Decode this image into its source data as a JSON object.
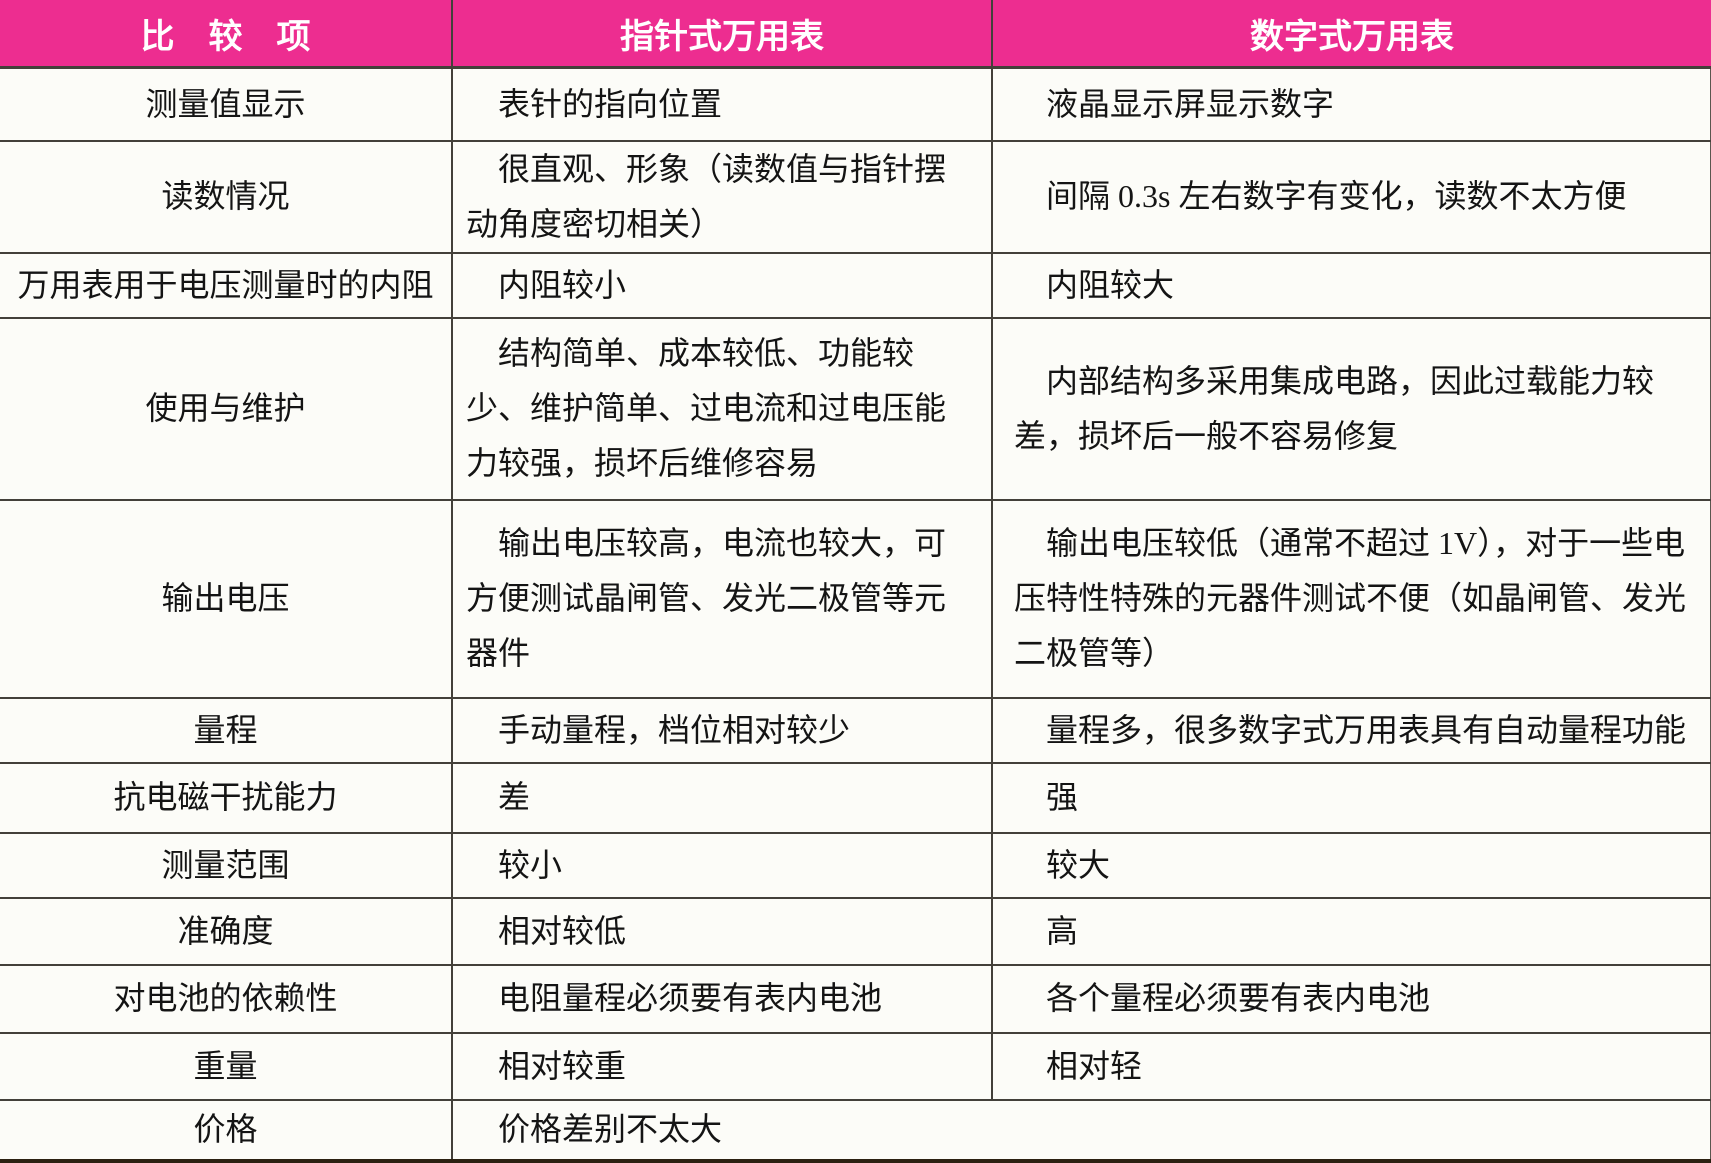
{
  "colors": {
    "header_bg": "#ED2D90",
    "header_text": "#FFFFFF",
    "grid_line": "#43403A",
    "bottom_rule": "#2B2112"
  },
  "table": {
    "header": {
      "col_item": "比　较　项",
      "col_analog": "指针式万用表",
      "col_digital": "数字式万用表"
    },
    "rows": [
      {
        "item": "测量值显示",
        "analog": "表针的指向位置",
        "digital": "液晶显示屏显示数字"
      },
      {
        "item": "读数情况",
        "analog": "很直观、形象（读数值与指针摆动角度密切相关）",
        "digital": "间隔 0.3s 左右数字有变化，读数不太方便"
      },
      {
        "item": "万用表用于电压测量时的内阻",
        "analog": "内阻较小",
        "digital": "内阻较大"
      },
      {
        "item": "使用与维护",
        "analog": "结构简单、成本较低、功能较少、维护简单、过电流和过电压能力较强，损坏后维修容易",
        "digital": "内部结构多采用集成电路，因此过载能力较差，损坏后一般不容易修复"
      },
      {
        "item": "输出电压",
        "analog": "输出电压较高，电流也较大，可方便测试晶闸管、发光二极管等元器件",
        "digital": "输出电压较低（通常不超过 1V），对于一些电压特性特殊的元器件测试不便（如晶闸管、发光二极管等）"
      },
      {
        "item": "量程",
        "analog": "手动量程，档位相对较少",
        "digital": "量程多，很多数字式万用表具有自动量程功能"
      },
      {
        "item": "抗电磁干扰能力",
        "analog": "差",
        "digital": "强"
      },
      {
        "item": "测量范围",
        "analog": "较小",
        "digital": "较大"
      },
      {
        "item": "准确度",
        "analog": "相对较低",
        "digital": "高"
      },
      {
        "item": "对电池的依赖性",
        "analog": "电阻量程必须要有表内电池",
        "digital": "各个量程必须要有表内电池"
      },
      {
        "item": "重量",
        "analog": "相对较重",
        "digital": "相对轻"
      },
      {
        "item": "价格",
        "analog": "价格差别不太大",
        "digital": null,
        "span_full_width": true
      }
    ]
  }
}
